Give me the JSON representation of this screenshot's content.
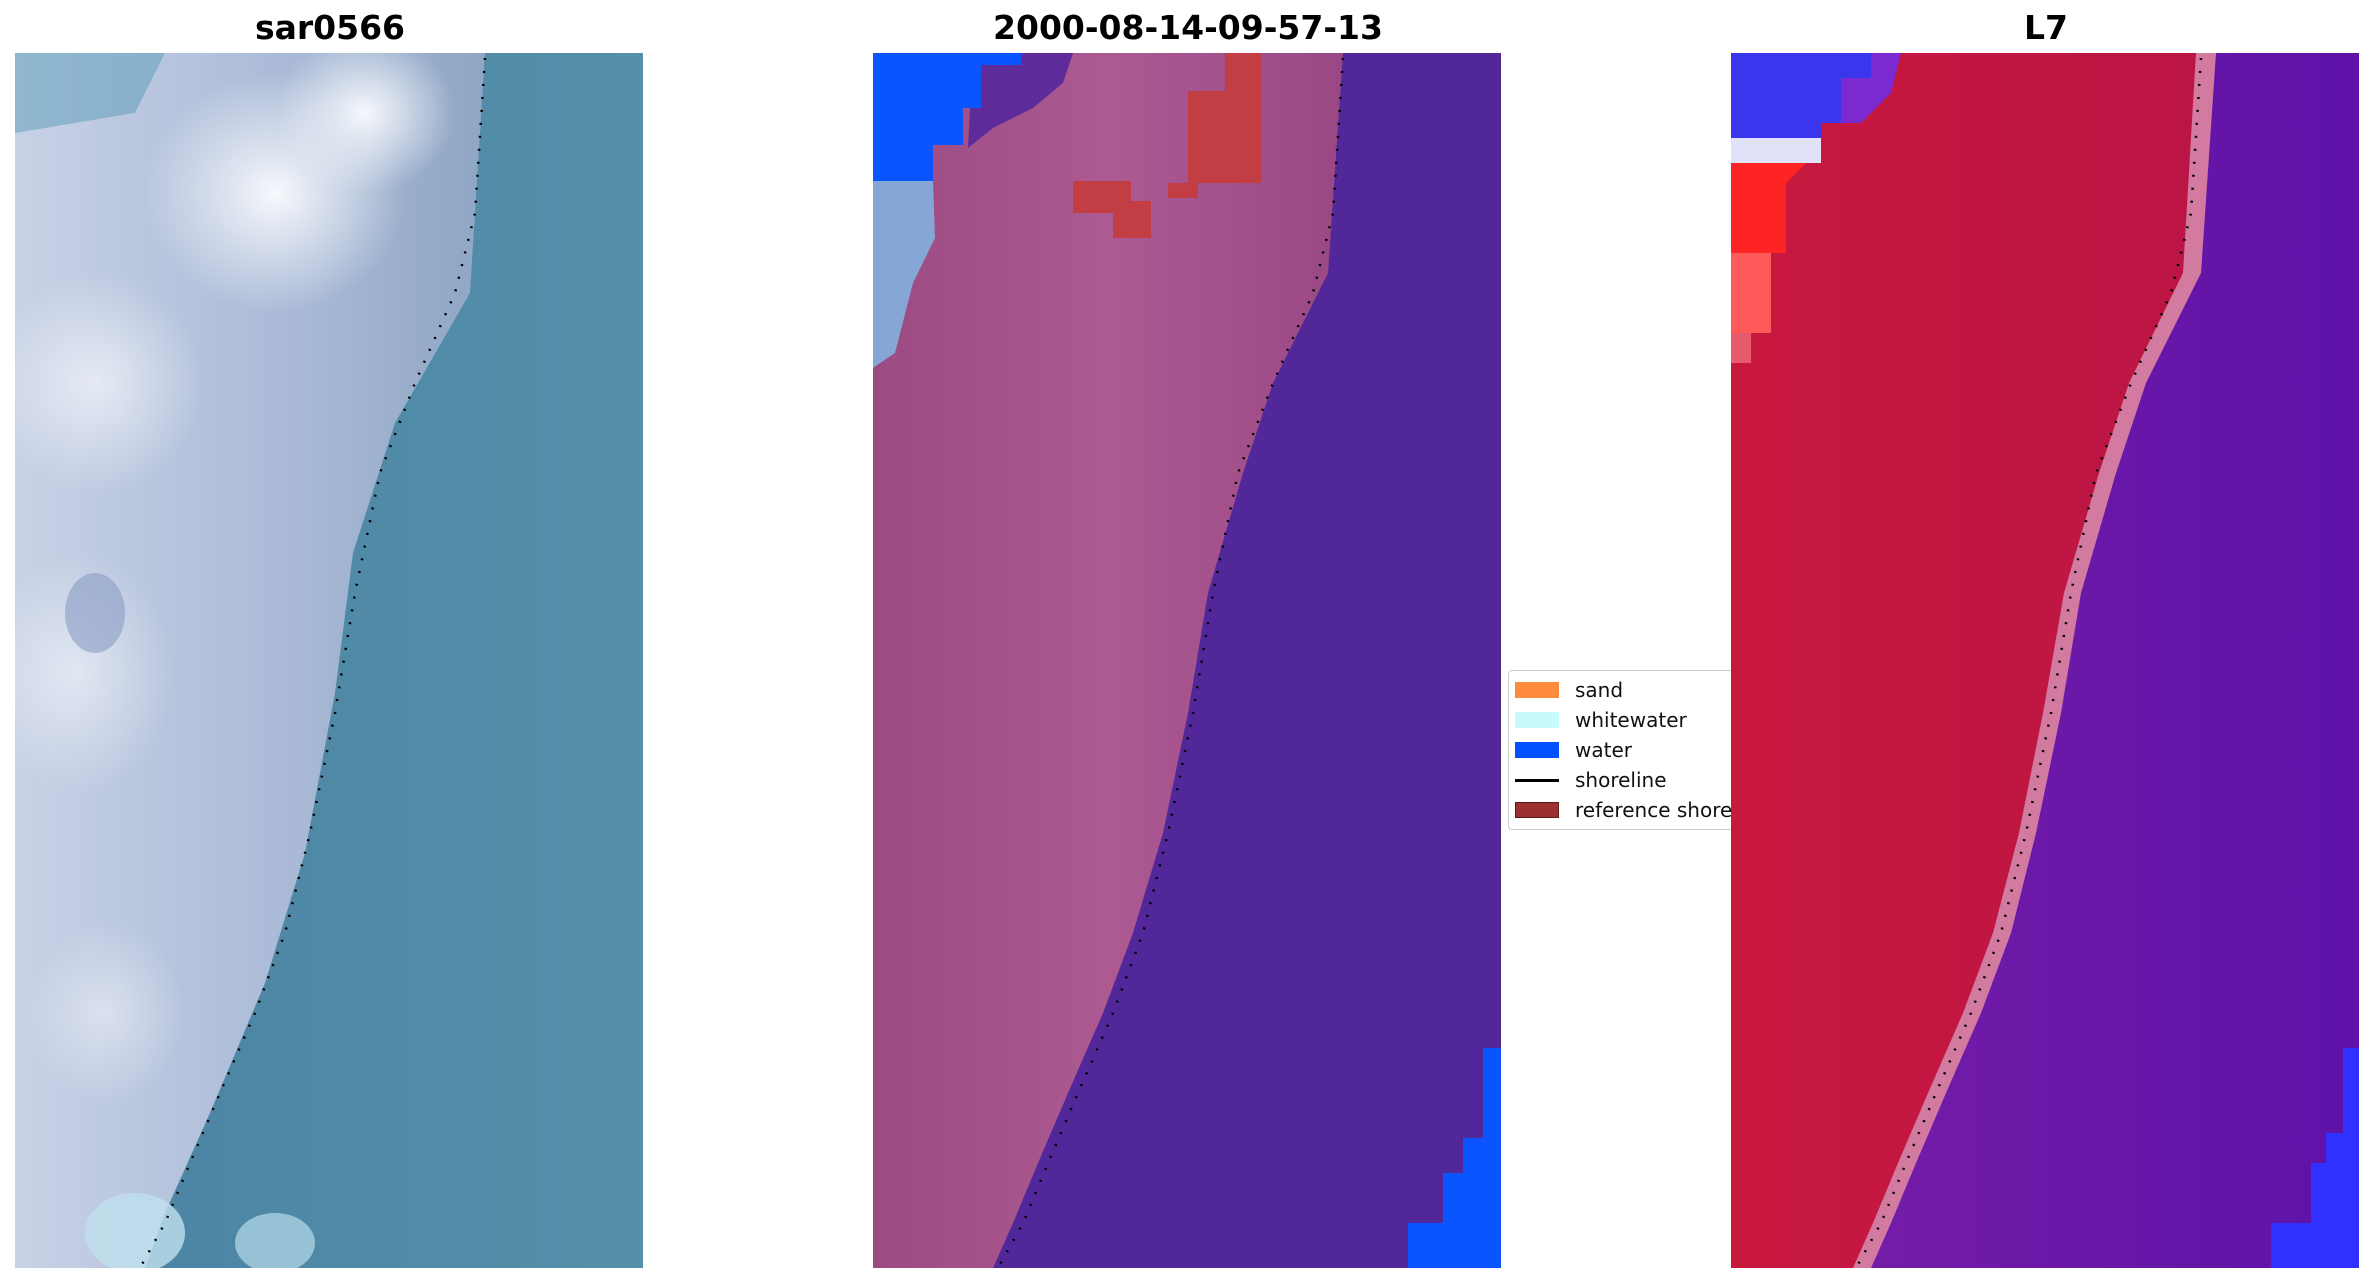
{
  "panels": [
    {
      "title": "sar0566",
      "kind": "rgb"
    },
    {
      "title": "2000-08-14-09-57-13",
      "kind": "classified"
    },
    {
      "title": "L7",
      "kind": "mndwi"
    }
  ],
  "legend": {
    "items": [
      {
        "label": "sand",
        "color": "#ff8c3c",
        "type": "patch"
      },
      {
        "label": "whitewater",
        "color": "#c8fafa",
        "type": "patch"
      },
      {
        "label": "water",
        "color": "#0050ff",
        "type": "patch"
      },
      {
        "label": "shoreline",
        "color": "#000000",
        "type": "line"
      },
      {
        "label": "reference shoreline",
        "color": "#9b3030",
        "type": "patch"
      }
    ]
  },
  "colors": {
    "rgb_water": "#4e87a5",
    "rgb_land": "#b4c2dc",
    "rgb_cloud": "#eef2f8",
    "class_water": "#52279a",
    "class_land": "#a8528c",
    "class_blue": "#0a55ff",
    "class_red": "#c23e44",
    "mndwi_land": "#c2153f",
    "mndwi_water": "#6d1aa6",
    "mndwi_edge": "#d07a9c",
    "mndwi_blue": "#2a2aff"
  }
}
